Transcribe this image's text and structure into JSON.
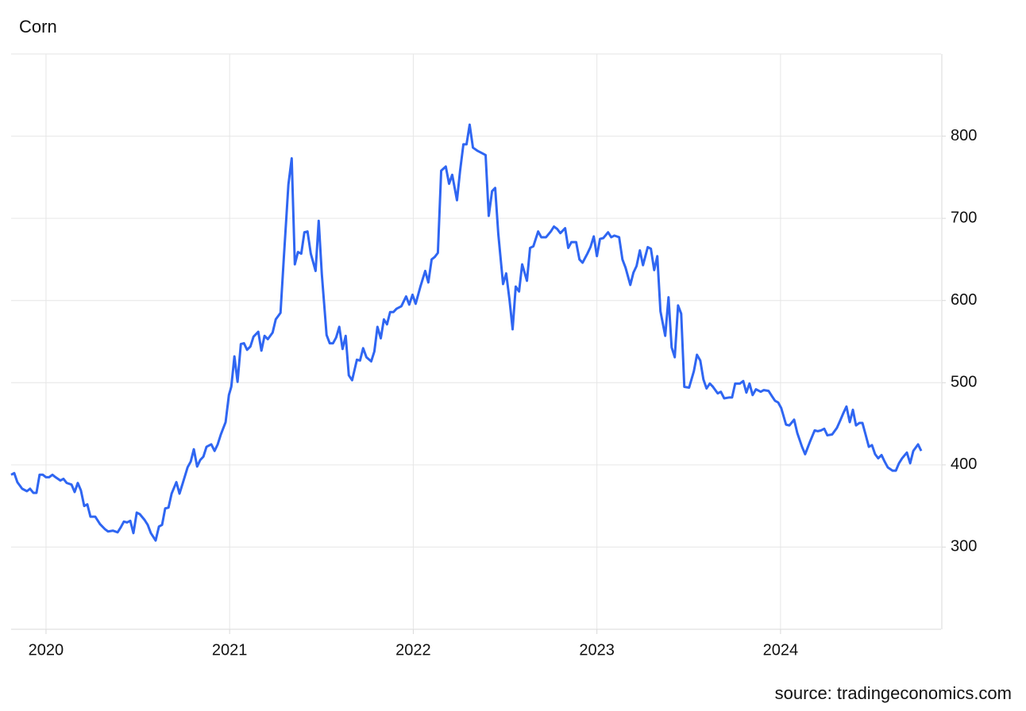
{
  "chart_data": {
    "type": "line",
    "title": "Corn",
    "source": "source: tradingeconomics.com",
    "x": [
      2019.81,
      2019.827,
      2019.844,
      2019.87,
      2019.896,
      2019.913,
      2019.931,
      2019.948,
      2019.965,
      2019.983,
      2020,
      2020.017,
      2020.035,
      2020.052,
      2020.078,
      2020.095,
      2020.113,
      2020.139,
      2020.156,
      2020.173,
      2020.19,
      2020.208,
      2020.225,
      2020.242,
      2020.268,
      2020.294,
      2020.32,
      2020.338,
      2020.364,
      2020.39,
      2020.407,
      2020.424,
      2020.442,
      2020.459,
      2020.476,
      2020.494,
      2020.511,
      2020.537,
      2020.554,
      2020.571,
      2020.597,
      2020.615,
      2020.632,
      2020.649,
      2020.667,
      2020.684,
      2020.71,
      2020.727,
      2020.745,
      2020.771,
      2020.788,
      2020.805,
      2020.823,
      2020.84,
      2020.857,
      2020.874,
      2020.9,
      2020.918,
      2020.935,
      2020.952,
      2020.978,
      2020.996,
      2021.009,
      2021.026,
      2021.043,
      2021.061,
      2021.078,
      2021.095,
      2021.113,
      2021.13,
      2021.156,
      2021.173,
      2021.19,
      2021.208,
      2021.234,
      2021.251,
      2021.277,
      2021.294,
      2021.32,
      2021.338,
      2021.355,
      2021.372,
      2021.39,
      2021.407,
      2021.424,
      2021.442,
      2021.468,
      2021.485,
      2021.502,
      2021.528,
      2021.545,
      2021.563,
      2021.58,
      2021.597,
      2021.615,
      2021.632,
      2021.649,
      2021.667,
      2021.693,
      2021.71,
      2021.727,
      2021.745,
      2021.771,
      2021.788,
      2021.805,
      2021.823,
      2021.84,
      2021.857,
      2021.874,
      2021.892,
      2021.909,
      2021.935,
      2021.961,
      2021.978,
      2021.996,
      2022.013,
      2022.039,
      2022.065,
      2022.082,
      2022.1,
      2022.117,
      2022.134,
      2022.152,
      2022.177,
      2022.195,
      2022.212,
      2022.238,
      2022.255,
      2022.273,
      2022.29,
      2022.307,
      2022.325,
      2022.351,
      2022.377,
      2022.394,
      2022.411,
      2022.429,
      2022.446,
      2022.463,
      2022.489,
      2022.506,
      2022.524,
      2022.541,
      2022.558,
      2022.576,
      2022.593,
      2022.619,
      2022.636,
      2022.654,
      2022.68,
      2022.697,
      2022.723,
      2022.749,
      2022.766,
      2022.784,
      2022.801,
      2022.827,
      2022.844,
      2022.861,
      2022.887,
      2022.905,
      2022.922,
      2022.948,
      2022.965,
      2022.983,
      2023,
      2023.017,
      2023.035,
      2023.061,
      2023.078,
      2023.095,
      2023.121,
      2023.139,
      2023.156,
      2023.182,
      2023.199,
      2023.216,
      2023.234,
      2023.251,
      2023.277,
      2023.294,
      2023.312,
      2023.329,
      2023.346,
      2023.372,
      2023.39,
      2023.407,
      2023.424,
      2023.442,
      2023.459,
      2023.476,
      2023.502,
      2023.528,
      2023.545,
      2023.563,
      2023.58,
      2023.597,
      2023.615,
      2023.632,
      2023.658,
      2023.675,
      2023.693,
      2023.719,
      2023.736,
      2023.753,
      2023.779,
      2023.797,
      2023.814,
      2023.831,
      2023.848,
      2023.866,
      2023.892,
      2023.909,
      2023.935,
      2023.952,
      2023.97,
      2023.987,
      2024.004,
      2024.03,
      2024.048,
      2024.074,
      2024.091,
      2024.117,
      2024.134,
      2024.16,
      2024.186,
      2024.203,
      2024.221,
      2024.238,
      2024.255,
      2024.281,
      2024.307,
      2024.325,
      2024.342,
      2024.359,
      2024.377,
      2024.394,
      2024.411,
      2024.429,
      2024.446,
      2024.463,
      2024.481,
      2024.498,
      2024.515,
      2024.532,
      2024.55,
      2024.567,
      2024.584,
      2024.61,
      2024.628,
      2024.645,
      2024.662,
      2024.688,
      2024.706,
      2024.723,
      2024.749,
      2024.766
    ],
    "values": [
      388,
      390,
      379,
      371,
      368,
      371,
      366,
      366,
      388,
      388,
      385,
      385,
      388,
      385,
      381,
      383,
      378,
      376,
      367,
      378,
      369,
      350,
      352,
      337,
      337,
      328,
      322,
      319,
      320,
      318,
      324,
      331,
      330,
      332,
      317,
      342,
      340,
      333,
      327,
      317,
      308,
      325,
      327,
      347,
      348,
      365,
      379,
      365,
      378,
      397,
      404,
      419,
      398,
      406,
      410,
      422,
      425,
      417,
      425,
      437,
      452,
      485,
      495,
      532,
      501,
      547,
      548,
      540,
      544,
      556,
      562,
      539,
      557,
      553,
      561,
      577,
      585,
      648,
      741,
      773,
      644,
      659,
      657,
      683,
      684,
      657,
      636,
      697,
      632,
      558,
      548,
      548,
      555,
      568,
      541,
      557,
      509,
      503,
      528,
      527,
      542,
      531,
      526,
      538,
      568,
      554,
      577,
      571,
      586,
      586,
      590,
      593,
      605,
      595,
      607,
      596,
      617,
      636,
      622,
      650,
      653,
      658,
      758,
      763,
      742,
      753,
      722,
      758,
      790,
      790,
      814,
      786,
      782,
      779,
      777,
      703,
      733,
      737,
      681,
      620,
      633,
      601,
      565,
      617,
      611,
      644,
      624,
      664,
      666,
      684,
      677,
      677,
      684,
      690,
      687,
      682,
      688,
      664,
      671,
      671,
      650,
      646,
      657,
      665,
      678,
      654,
      675,
      676,
      683,
      677,
      679,
      677,
      650,
      640,
      619,
      634,
      642,
      661,
      643,
      665,
      663,
      637,
      654,
      587,
      557,
      604,
      543,
      531,
      594,
      584,
      495,
      494,
      514,
      534,
      527,
      504,
      493,
      499,
      495,
      487,
      489,
      481,
      482,
      482,
      499,
      499,
      502,
      488,
      499,
      485,
      492,
      489,
      491,
      490,
      484,
      478,
      476,
      469,
      449,
      448,
      455,
      439,
      422,
      413,
      428,
      442,
      441,
      442,
      444,
      436,
      437,
      445,
      454,
      463,
      471,
      452,
      467,
      448,
      451,
      451,
      437,
      422,
      424,
      413,
      408,
      412,
      404,
      397,
      393,
      393,
      402,
      408,
      415,
      402,
      417,
      425,
      417
    ],
    "color": "#2f66f2",
    "xlim": [
      2019.81,
      2024.874
    ],
    "xticks": [
      2020,
      2021,
      2022,
      2023,
      2024
    ],
    "ylim": [
      200,
      900
    ],
    "yticks": [
      300,
      400,
      500,
      600,
      700,
      800
    ],
    "grid": true
  }
}
